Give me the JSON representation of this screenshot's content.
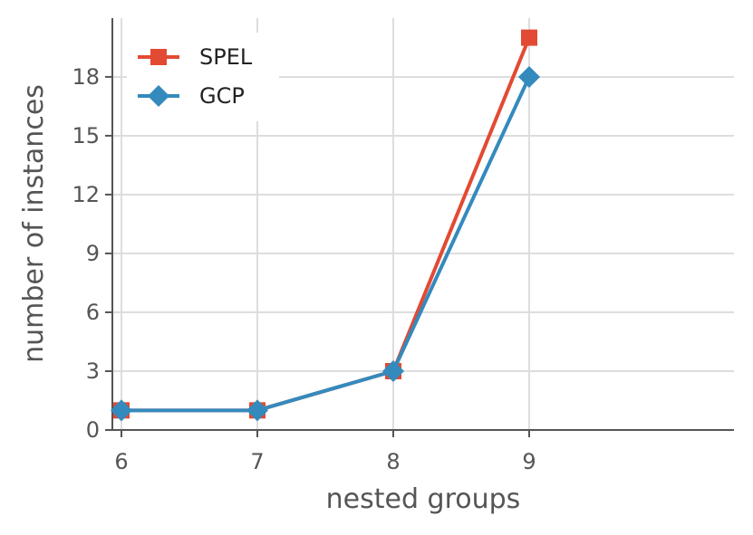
{
  "chart_data": {
    "type": "line",
    "title": "",
    "xlabel": "nested groups",
    "ylabel": "number of instances",
    "x": [
      6,
      7,
      8,
      9
    ],
    "x_ticks": [
      6,
      7,
      8,
      9
    ],
    "y_ticks": [
      0,
      3,
      6,
      9,
      12,
      15,
      18
    ],
    "ylim": [
      0,
      21
    ],
    "grid": true,
    "legend_position": "top-left",
    "series": [
      {
        "name": "SPEL",
        "values": [
          1,
          1,
          3,
          20
        ],
        "color": "#e24a33",
        "marker": "square"
      },
      {
        "name": "GCP",
        "values": [
          1,
          1,
          3,
          18
        ],
        "color": "#348abd",
        "marker": "diamond"
      }
    ]
  }
}
